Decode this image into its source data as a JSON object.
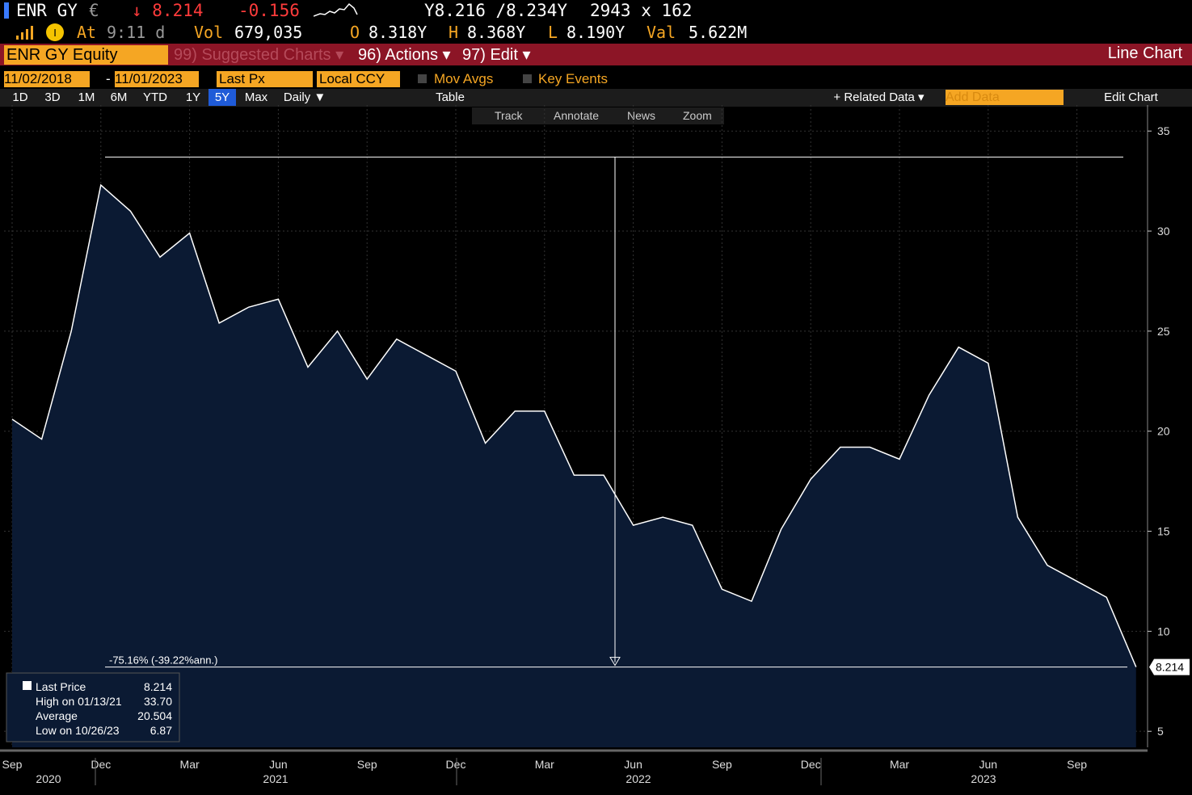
{
  "header": {
    "ticker": "ENR GY",
    "currency": "€",
    "last": "↓ 8.214",
    "change": "-0.156",
    "bidask": "Y8.216 /8.234Y",
    "size": "2943 x 162",
    "at_label": "At",
    "time": "9:11 d",
    "vol_label": "Vol",
    "vol": "679,035",
    "open_label": "O",
    "open": "8.318Y",
    "high_label": "H",
    "high": "8.368Y",
    "low_label": "L",
    "low": "8.190Y",
    "val_label": "Val",
    "val": "5.622M"
  },
  "menu": {
    "security": "ENR GY Equity",
    "suggested": "99) Suggested Charts ▾",
    "actions": "96) Actions ▾",
    "edit": "97) Edit ▾",
    "view": "Line Chart"
  },
  "settings": {
    "start": "11/02/2018",
    "dash": "-",
    "end": "11/01/2023",
    "field": "Last Px",
    "ccy": "Local CCY",
    "mov_avgs": "Mov Avgs",
    "key_events": "Key Events"
  },
  "toolbar": {
    "periods": [
      "1D",
      "3D",
      "1M",
      "6M",
      "YTD",
      "1Y",
      "5Y",
      "Max"
    ],
    "selected": "5Y",
    "freq": "Daily ▼",
    "table": "Table",
    "related": "+ Related Data ▾",
    "add": "Add Data",
    "edit_chart": "Edit Chart"
  },
  "tools": [
    "Track",
    "Annotate",
    "News",
    "Zoom"
  ],
  "chart_data": {
    "type": "line",
    "x": [
      "2020-09",
      "2020-10",
      "2020-11",
      "2020-12",
      "2021-01",
      "2021-02",
      "2021-03",
      "2021-04",
      "2021-05",
      "2021-06",
      "2021-07",
      "2021-08",
      "2021-09",
      "2021-10",
      "2021-11",
      "2021-12",
      "2022-01",
      "2022-02",
      "2022-03",
      "2022-04",
      "2022-05",
      "2022-06",
      "2022-07",
      "2022-08",
      "2022-09",
      "2022-10",
      "2022-11",
      "2022-12",
      "2023-01",
      "2023-02",
      "2023-03",
      "2023-04",
      "2023-05",
      "2023-06",
      "2023-07",
      "2023-08",
      "2023-09",
      "2023-10",
      "2023-11"
    ],
    "series": [
      {
        "name": "Last Price",
        "color": "#ffffff",
        "fill": "#0b1a33",
        "values": [
          20.6,
          19.6,
          25,
          32.3,
          31,
          28.7,
          29.9,
          25.4,
          26.2,
          26.6,
          23.2,
          25,
          22.6,
          24.6,
          23.8,
          23,
          19.4,
          21,
          21,
          17.8,
          17.8,
          15.3,
          15.7,
          15.3,
          12.1,
          11.5,
          15.1,
          17.6,
          19.2,
          19.2,
          18.6,
          21.8,
          24.2,
          23.4,
          15.7,
          13.3,
          12.5,
          11.7,
          8.214
        ]
      }
    ],
    "ylim": [
      4.2,
      36.3
    ],
    "yticks": [
      5,
      10,
      15,
      20,
      25,
      30,
      35
    ],
    "grid": true,
    "xticks": [
      {
        "value": "2020-09",
        "label": "Sep"
      },
      {
        "value": "2020-12",
        "label": "Dec"
      },
      {
        "value": "2021-03",
        "label": "Mar"
      },
      {
        "value": "2021-06",
        "label": "Jun"
      },
      {
        "value": "2021-09",
        "label": "Sep"
      },
      {
        "value": "2021-12",
        "label": "Dec"
      },
      {
        "value": "2022-03",
        "label": "Mar"
      },
      {
        "value": "2022-06",
        "label": "Jun"
      },
      {
        "value": "2022-09",
        "label": "Sep"
      },
      {
        "value": "2022-12",
        "label": "Dec"
      },
      {
        "value": "2023-03",
        "label": "Mar"
      },
      {
        "value": "2023-06",
        "label": "Jun"
      },
      {
        "value": "2023-09",
        "label": "Sep"
      }
    ],
    "years": [
      "2020",
      "2021",
      "2022",
      "2023"
    ],
    "annotation": "-75.16% (-39.22%ann.)",
    "last_label": "8.214",
    "legend": {
      "last_name": "Last Price",
      "last": 8.214,
      "high_name": "High on 01/13/21",
      "high": 33.7,
      "high_label": "33.70",
      "avg_name": "Average",
      "avg": 20.504,
      "low_name": "Low on 10/26/23",
      "low": 6.87
    }
  }
}
